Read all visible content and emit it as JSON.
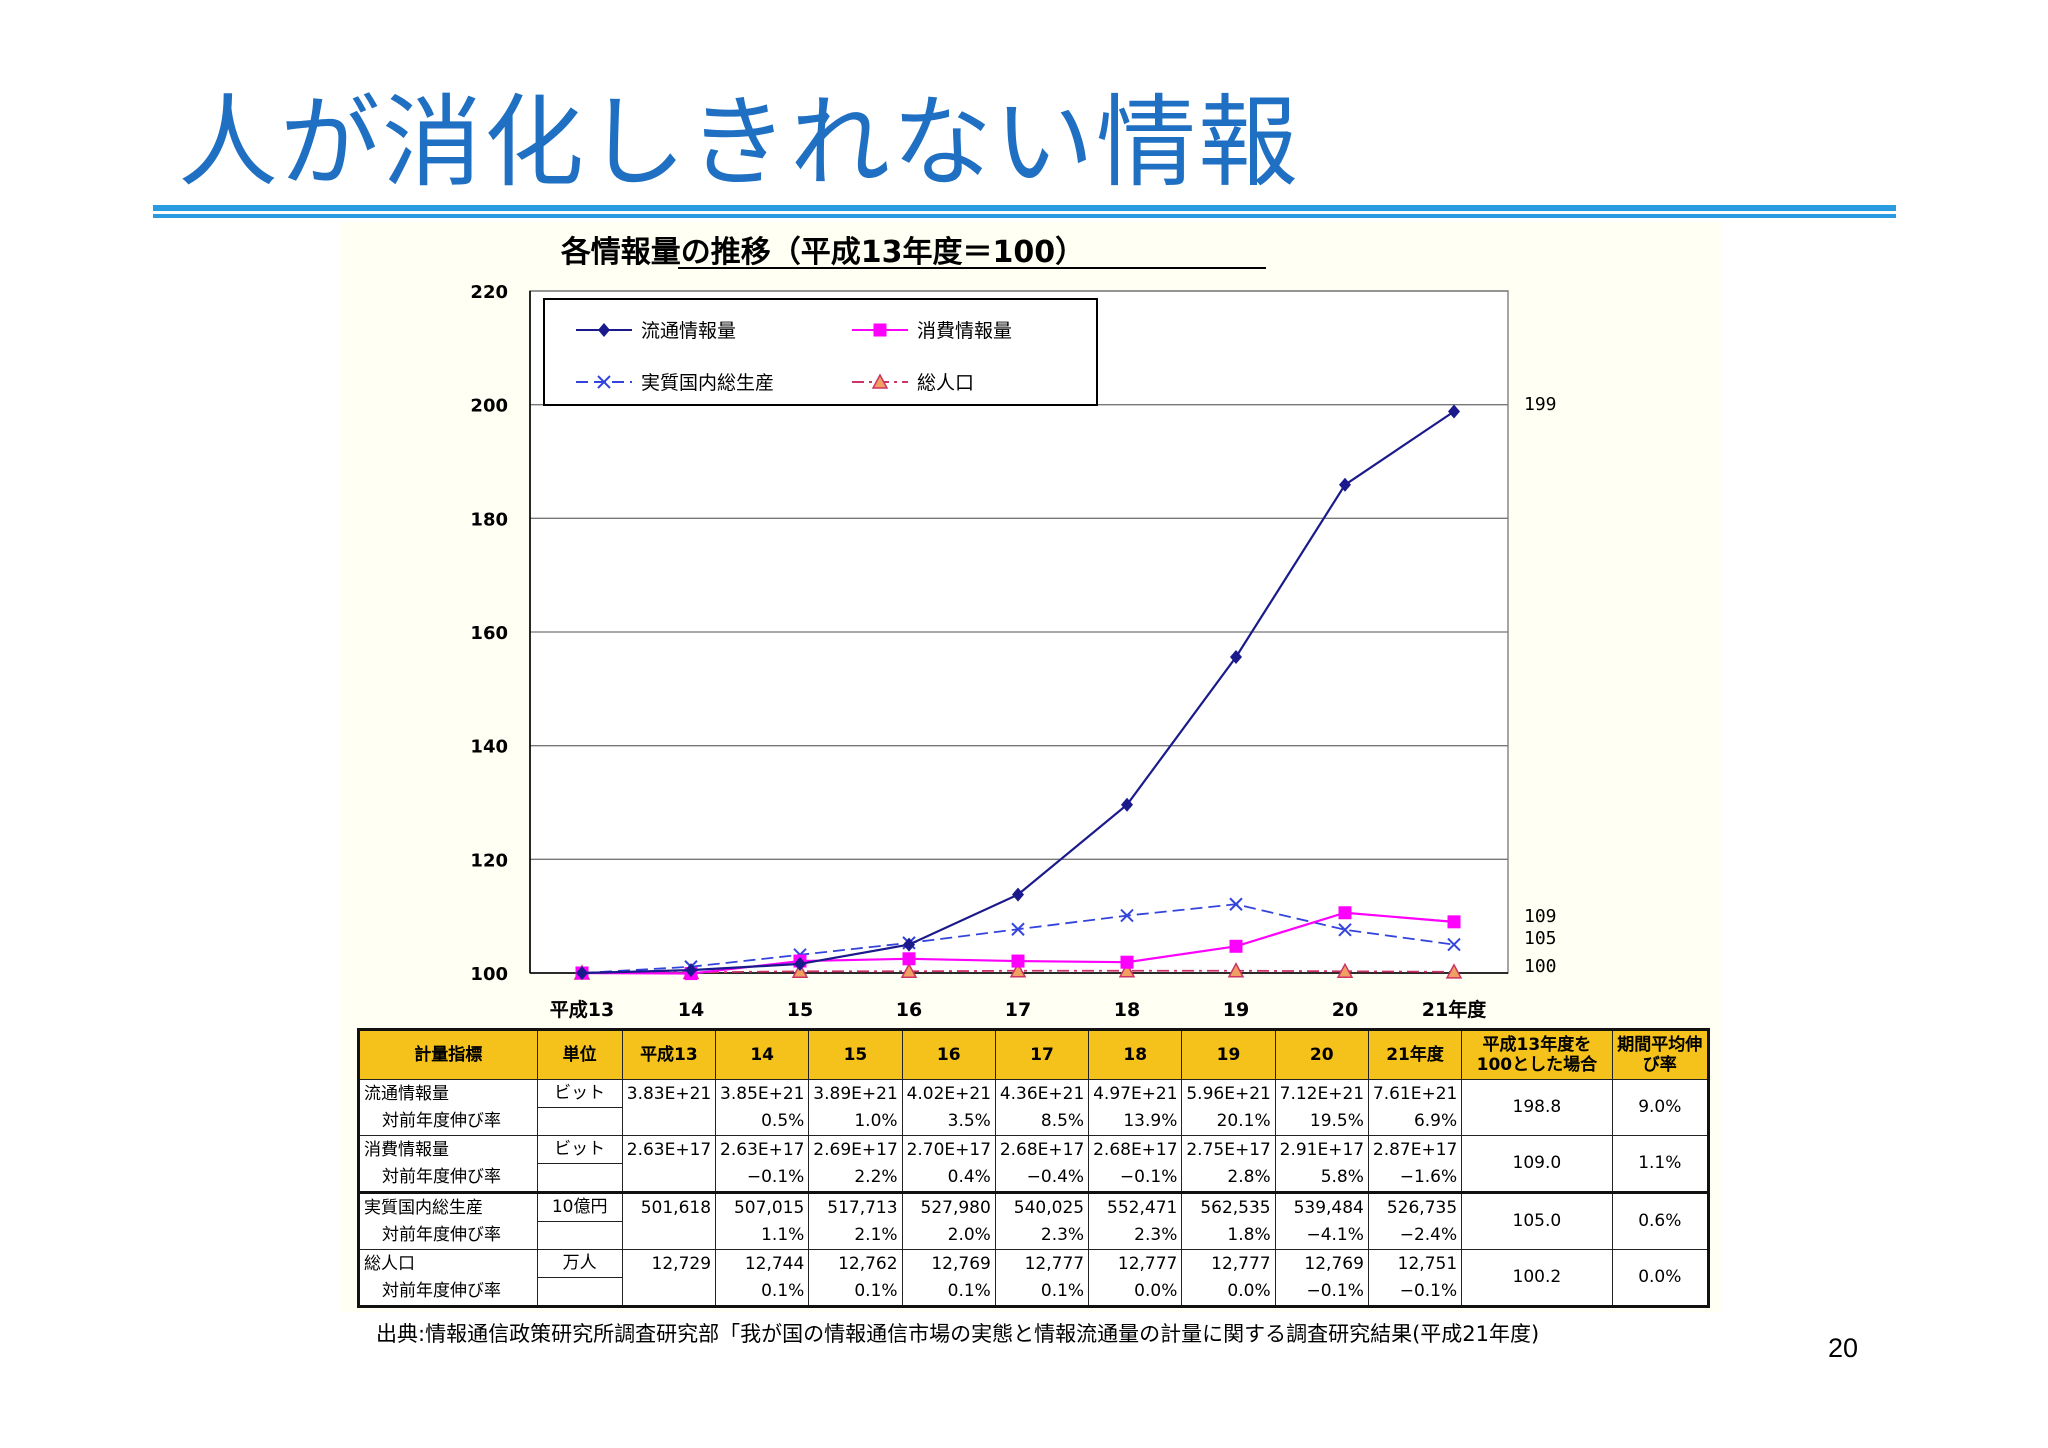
{
  "slide": {
    "title": "人が消化しきれない情報",
    "page_number": "20",
    "source": "出典:情報通信政策研究所調査研究部「我が国の情報通信市場の実態と情報流通量の計量に関する調査研究結果(平成21年度)"
  },
  "colors": {
    "title": "#1f6fc2",
    "rule": "#2a9be0",
    "panel": "#fffff3",
    "header": "#f4c21a",
    "series_circulation": "#1a1a8c",
    "series_consumption": "#ff00ff",
    "series_gdp": "#3344dd",
    "series_population": "#cc3366"
  },
  "chart_data": {
    "type": "line",
    "title": "各情報量の推移（平成13年度＝100）",
    "xlabel": "",
    "ylabel": "",
    "categories": [
      "平成13",
      "14",
      "15",
      "16",
      "17",
      "18",
      "19",
      "20",
      "21年度"
    ],
    "ylim": [
      100,
      220
    ],
    "yticks": [
      100,
      120,
      140,
      160,
      180,
      200,
      220
    ],
    "grid": true,
    "legend_position": "top-left",
    "series": [
      {
        "name": "流通情報量",
        "marker": "diamond",
        "line": "solid",
        "color": "#1a1a8c",
        "values": [
          100,
          100.5,
          101.6,
          105,
          113.8,
          129.6,
          155.6,
          185.9,
          198.8
        ],
        "end_label": "199"
      },
      {
        "name": "消費情報量",
        "marker": "square",
        "line": "solid",
        "color": "#ff00ff",
        "values": [
          100,
          99.9,
          102.1,
          102.5,
          102.1,
          101.9,
          104.7,
          110.6,
          109.0
        ],
        "end_label": "109"
      },
      {
        "name": "実質国内総生産",
        "marker": "x",
        "line": "dashed",
        "color": "#3344dd",
        "values": [
          100,
          101.1,
          103.2,
          105.3,
          107.7,
          110.1,
          112.1,
          107.6,
          105.0
        ],
        "end_label": "105"
      },
      {
        "name": "総人口",
        "marker": "triangle",
        "line": "dashdot",
        "color": "#cc3366",
        "values": [
          100,
          100.1,
          100.3,
          100.3,
          100.4,
          100.4,
          100.4,
          100.3,
          100.2
        ],
        "end_label": "100"
      }
    ]
  },
  "table": {
    "headers": [
      "計量指標",
      "単位",
      "平成13",
      "14",
      "15",
      "16",
      "17",
      "18",
      "19",
      "20",
      "21年度",
      "平成13年度を100とした場合",
      "期間平均伸び率"
    ],
    "groups": [
      {
        "indicator": "流通情報量",
        "unit": "ビット",
        "values": [
          "3.83E+21",
          "3.85E+21",
          "3.89E+21",
          "4.02E+21",
          "4.36E+21",
          "4.97E+21",
          "5.96E+21",
          "7.12E+21",
          "7.61E+21"
        ],
        "growth_label": "対前年度伸び率",
        "growth": [
          "",
          "0.5%",
          "1.0%",
          "3.5%",
          "8.5%",
          "13.9%",
          "20.1%",
          "19.5%",
          "6.9%"
        ],
        "index": "198.8",
        "avg": "9.0%"
      },
      {
        "indicator": "消費情報量",
        "unit": "ビット",
        "values": [
          "2.63E+17",
          "2.63E+17",
          "2.69E+17",
          "2.70E+17",
          "2.68E+17",
          "2.68E+17",
          "2.75E+17",
          "2.91E+17",
          "2.87E+17"
        ],
        "growth_label": "対前年度伸び率",
        "growth": [
          "",
          "−0.1%",
          "2.2%",
          "0.4%",
          "−0.4%",
          "−0.1%",
          "2.8%",
          "5.8%",
          "−1.6%"
        ],
        "index": "109.0",
        "avg": "1.1%"
      },
      {
        "indicator": "実質国内総生産",
        "unit": "10億円",
        "values": [
          "501,618",
          "507,015",
          "517,713",
          "527,980",
          "540,025",
          "552,471",
          "562,535",
          "539,484",
          "526,735"
        ],
        "growth_label": "対前年度伸び率",
        "growth": [
          "",
          "1.1%",
          "2.1%",
          "2.0%",
          "2.3%",
          "2.3%",
          "1.8%",
          "−4.1%",
          "−2.4%"
        ],
        "index": "105.0",
        "avg": "0.6%"
      },
      {
        "indicator": "総人口",
        "unit": "万人",
        "values": [
          "12,729",
          "12,744",
          "12,762",
          "12,769",
          "12,777",
          "12,777",
          "12,777",
          "12,769",
          "12,751"
        ],
        "growth_label": "対前年度伸び率",
        "growth": [
          "",
          "0.1%",
          "0.1%",
          "0.1%",
          "0.1%",
          "0.0%",
          "0.0%",
          "−0.1%",
          "−0.1%"
        ],
        "index": "100.2",
        "avg": "0.0%"
      }
    ]
  }
}
